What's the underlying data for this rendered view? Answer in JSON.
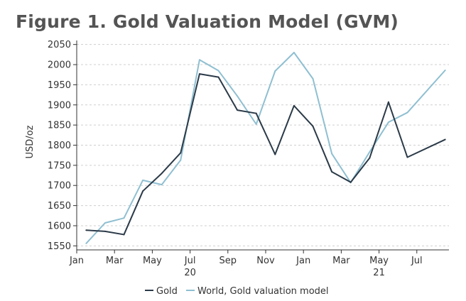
{
  "chart_data": {
    "type": "line",
    "title": "Figure 1. Gold Valuation Model (GVM)",
    "xlabel": "",
    "ylabel": "USD/oz",
    "ylim": [
      1540,
      2060
    ],
    "yticks": [
      1550,
      1600,
      1650,
      1700,
      1750,
      1800,
      1850,
      1900,
      1950,
      2000,
      2050
    ],
    "xlim": [
      0,
      19.7
    ],
    "xticks": [
      {
        "x": 0,
        "label": "Jan"
      },
      {
        "x": 2,
        "label": "Mar"
      },
      {
        "x": 4,
        "label": "May"
      },
      {
        "x": 6,
        "label": "Jul"
      },
      {
        "x": 8,
        "label": "Sep"
      },
      {
        "x": 10,
        "label": "Nov"
      },
      {
        "x": 12,
        "label": "Jan"
      },
      {
        "x": 14,
        "label": "Mar"
      },
      {
        "x": 16,
        "label": "May"
      },
      {
        "x": 18,
        "label": "Jul"
      }
    ],
    "year_labels": [
      {
        "x": 6,
        "label": "20"
      },
      {
        "x": 16,
        "label": "21"
      }
    ],
    "x": [
      0.5,
      1.5,
      2.5,
      3.5,
      4.5,
      5.5,
      6.5,
      7.5,
      8.5,
      9.5,
      10.5,
      11.5,
      12.5,
      13.5,
      14.5,
      15.5,
      16.5,
      17.5,
      18.5,
      19.5
    ],
    "series": [
      {
        "name": "Gold",
        "color": "#2b3a48",
        "values": [
          1589,
          1586,
          1578,
          1686,
          1730,
          1781,
          1977,
          1969,
          1887,
          1879,
          1777,
          1898,
          1847,
          1734,
          1708,
          1768,
          1907,
          1770,
          null,
          1814
        ]
      },
      {
        "name": "World, Gold valuation model",
        "color": "#8fbfd1",
        "values": [
          1556,
          1607,
          1619,
          1713,
          1702,
          1763,
          2012,
          1985,
          1922,
          1852,
          1984,
          2030,
          1965,
          1779,
          1707,
          1783,
          1857,
          1881,
          null,
          1986
        ]
      }
    ],
    "legend": [
      "Gold",
      "World, Gold valuation model"
    ],
    "legend_position": "bottom",
    "grid": true
  }
}
